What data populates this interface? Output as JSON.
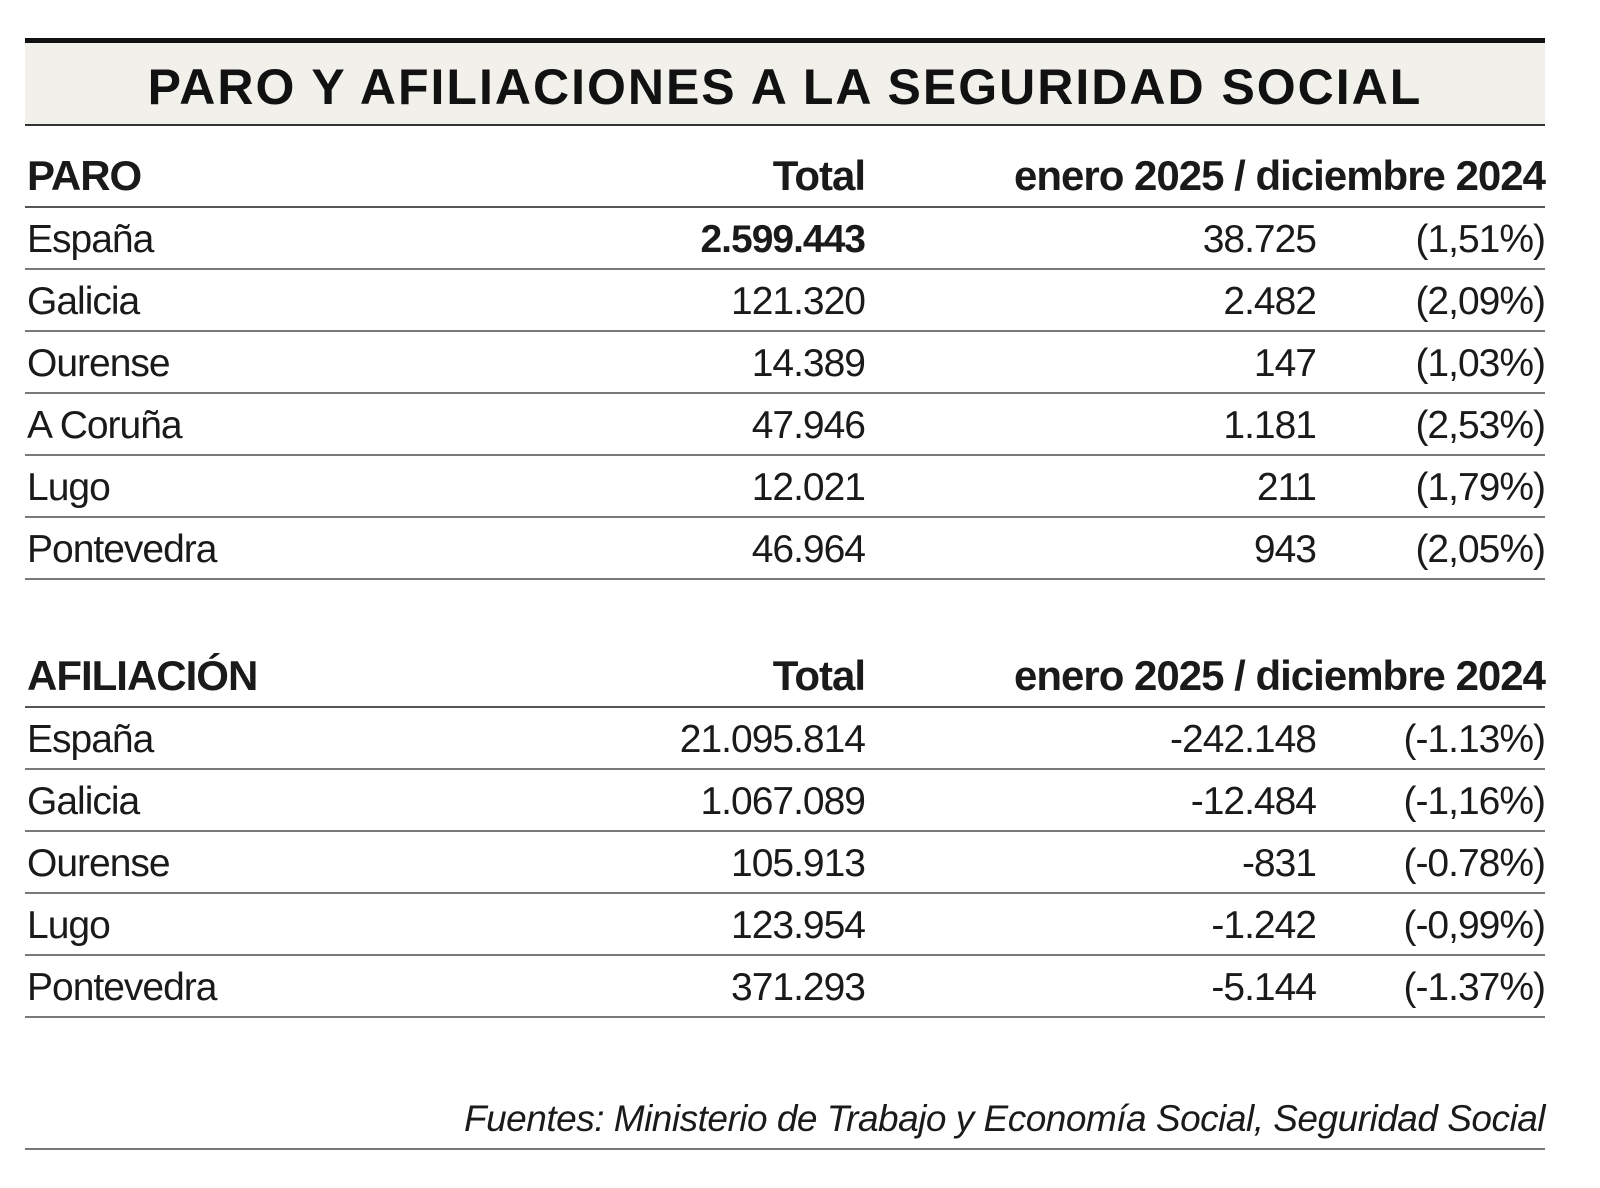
{
  "title": "PARO Y AFILIACIONES A LA SEGURIDAD SOCIAL",
  "paro": {
    "heading": "PARO",
    "col_total": "Total",
    "col_change": "enero 2025 / diciembre 2024",
    "rows": [
      {
        "name": "España",
        "total": "2.599.443",
        "change": "38.725",
        "pct": "(1,51%)"
      },
      {
        "name": "Galicia",
        "total": "121.320",
        "change": "2.482",
        "pct": "(2,09%)"
      },
      {
        "name": "Ourense",
        "total": "14.389",
        "change": "147",
        "pct": "(1,03%)"
      },
      {
        "name": "A Coruña",
        "total": "47.946",
        "change": "1.181",
        "pct": "(2,53%)"
      },
      {
        "name": "Lugo",
        "total": "12.021",
        "change": "211",
        "pct": "(1,79%)"
      },
      {
        "name": "Pontevedra",
        "total": "46.964",
        "change": "943",
        "pct": "(2,05%)"
      }
    ]
  },
  "afiliacion": {
    "heading": "AFILIACIÓN",
    "col_total": "Total",
    "col_change": "enero 2025 / diciembre 2024",
    "rows": [
      {
        "name": "España",
        "total": "21.095.814",
        "change": "-242.148",
        "pct": "(-1.13%)"
      },
      {
        "name": "Galicia",
        "total": "1.067.089",
        "change": "-12.484",
        "pct": "(-1,16%)"
      },
      {
        "name": "Ourense",
        "total": "105.913",
        "change": "-831",
        "pct": "(-0.78%)"
      },
      {
        "name": "Lugo",
        "total": "123.954",
        "change": "-1.242",
        "pct": "(-0,99%)"
      },
      {
        "name": "Pontevedra",
        "total": "371.293",
        "change": "-5.144",
        "pct": "(-1.37%)"
      }
    ]
  },
  "footer": "Fuentes: Ministerio de Trabajo y Economía Social, Seguridad Social"
}
